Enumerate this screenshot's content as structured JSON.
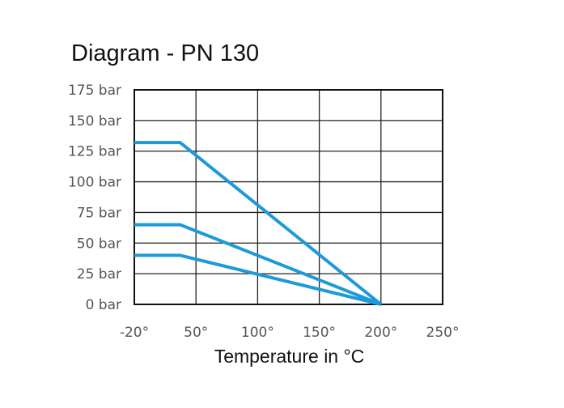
{
  "chart_data": {
    "type": "line",
    "title": "Diagram - PN 130",
    "xlabel": "Temperature in °C",
    "ylabel": "",
    "x_ticks": [
      "-20°",
      "50°",
      "100°",
      "150°",
      "200°",
      "250°"
    ],
    "x_tick_values": [
      -20,
      50,
      100,
      150,
      200,
      250
    ],
    "y_ticks": [
      "0 bar",
      "25 bar",
      "50 bar",
      "75 bar",
      "100 bar",
      "125 bar",
      "150 bar",
      "175 bar"
    ],
    "ylim": [
      0,
      175
    ],
    "xlim": [
      -20,
      250
    ],
    "grid": true,
    "line_color": "#1d9ad8",
    "series": [
      {
        "x": [
          -20,
          32,
          200
        ],
        "y": [
          132,
          132,
          0
        ]
      },
      {
        "x": [
          -20,
          32,
          200
        ],
        "y": [
          65,
          65,
          0
        ]
      },
      {
        "x": [
          -20,
          32,
          200
        ],
        "y": [
          40,
          40,
          0
        ]
      }
    ]
  }
}
